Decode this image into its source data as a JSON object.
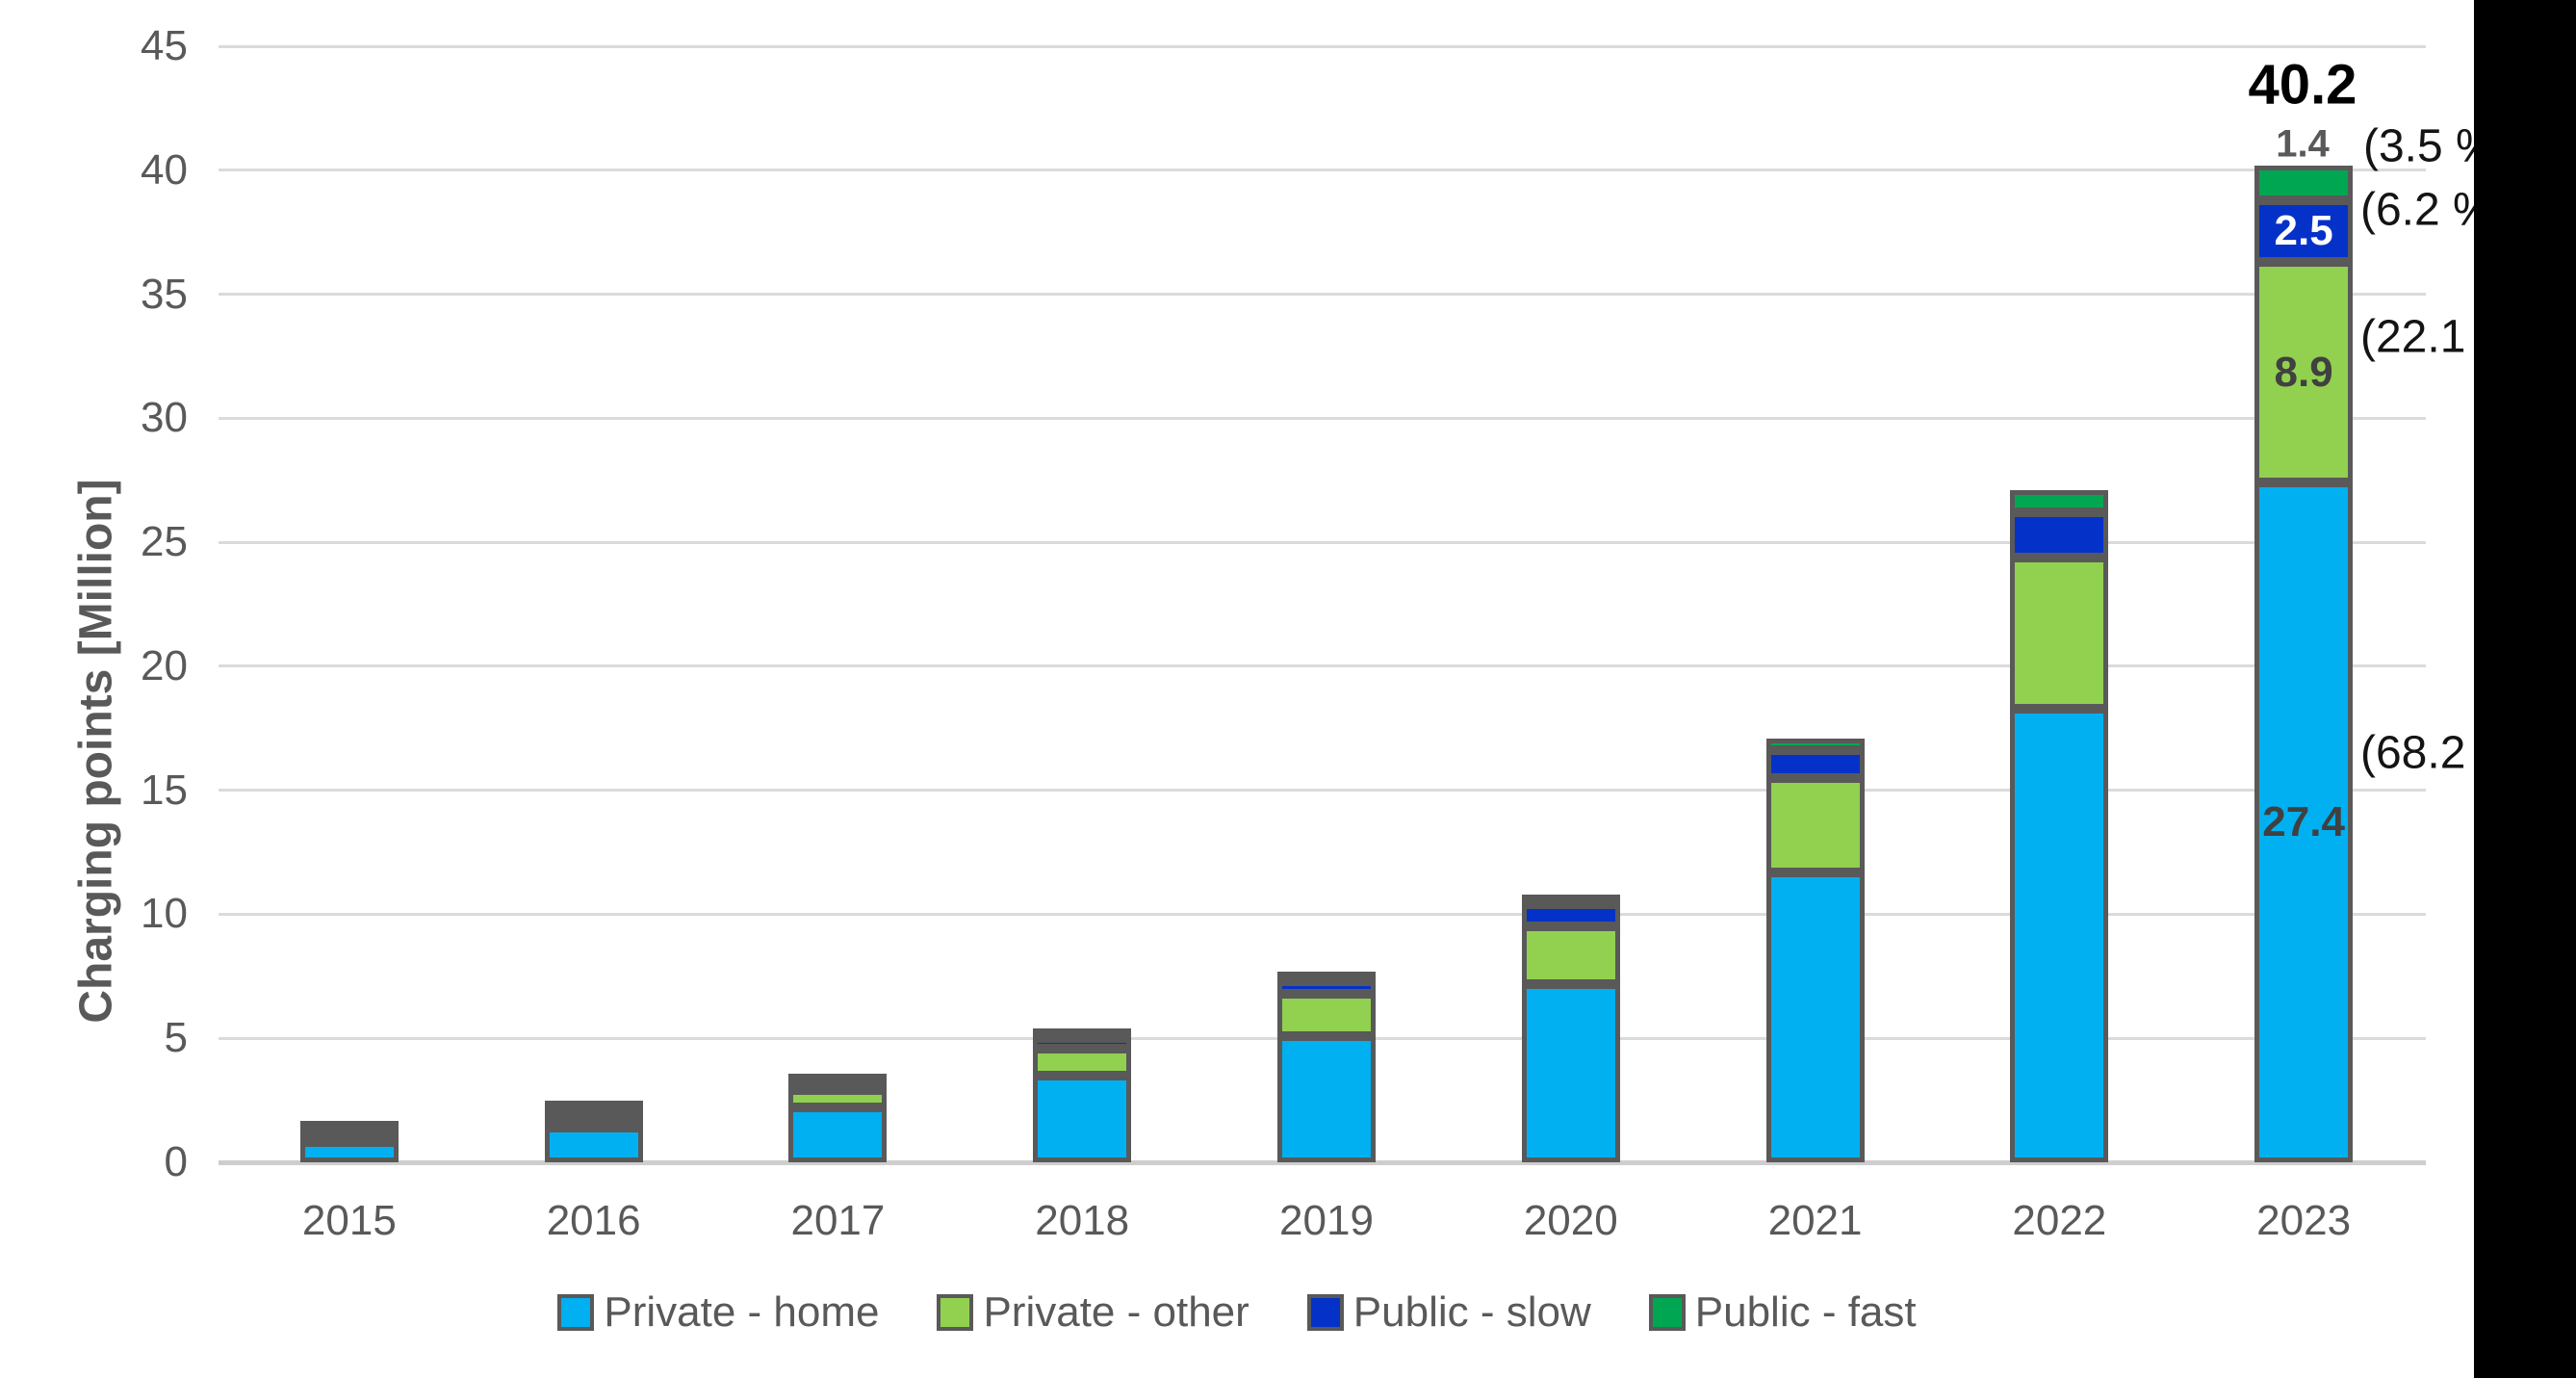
{
  "chart_data": {
    "type": "bar",
    "stacked": true,
    "title": "",
    "xlabel": "",
    "ylabel": "Charging points [Million]",
    "ylim": [
      0,
      45
    ],
    "yticks": [
      0,
      5,
      10,
      15,
      20,
      25,
      30,
      35,
      40,
      45
    ],
    "grid": "horizontal",
    "legend_position": "bottom",
    "categories": [
      "2015",
      "2016",
      "2017",
      "2018",
      "2019",
      "2020",
      "2021",
      "2022",
      "2023"
    ],
    "series": [
      {
        "name": "Private - home",
        "color": "#00B0F0",
        "values": [
          0.8,
          1.4,
          2.2,
          3.5,
          5.1,
          7.2,
          11.7,
          18.3,
          27.4
        ]
      },
      {
        "name": "Private - other",
        "color": "#92D050",
        "values": [
          0.3,
          0.4,
          0.7,
          1.1,
          1.7,
          2.3,
          3.8,
          6.1,
          8.9
        ]
      },
      {
        "name": "Public - slow",
        "color": "#0432C8",
        "values": [
          0.2,
          0.3,
          0.3,
          0.4,
          0.5,
          0.9,
          1.1,
          1.8,
          2.5
        ]
      },
      {
        "name": "Public - fast",
        "color": "#00A651",
        "values": [
          0.1,
          0.1,
          0.1,
          0.2,
          0.3,
          0.4,
          0.5,
          0.9,
          1.4
        ]
      }
    ],
    "labeled_category": "2023",
    "total_label": {
      "text": "40.2",
      "x": 2392,
      "y": 88
    },
    "bar_value_labels": [
      {
        "series": "Private - home",
        "text": "27.4",
        "color": "#404040",
        "placement": "inside"
      },
      {
        "series": "Private - other",
        "text": "8.9",
        "color": "#404040",
        "placement": "inside"
      },
      {
        "series": "Public - slow",
        "text": "2.5",
        "color": "#FFFFFF",
        "placement": "inside"
      },
      {
        "series": "Public - fast",
        "text": "1.4",
        "color": "#595959",
        "placement": "outside",
        "x": 2392,
        "y": 150
      }
    ],
    "percentage_annotations": [
      {
        "text": "(3.5 %",
        "x": 2455,
        "y": 152
      },
      {
        "text": "(6.2 %",
        "x": 2452,
        "y": 218
      },
      {
        "text": "(22.1",
        "x": 2452,
        "y": 350
      },
      {
        "text": "(68.2",
        "x": 2452,
        "y": 782
      }
    ]
  },
  "styles": {
    "segment_border_color": "#595959",
    "gridline_color": "#DBDBDB",
    "axis_line_color": "#CFCECE",
    "tick_label_color": "#595959",
    "legend_text_color": "#595959",
    "cutoff_band_color": "#000000",
    "background_color": "#FFFFFF"
  }
}
